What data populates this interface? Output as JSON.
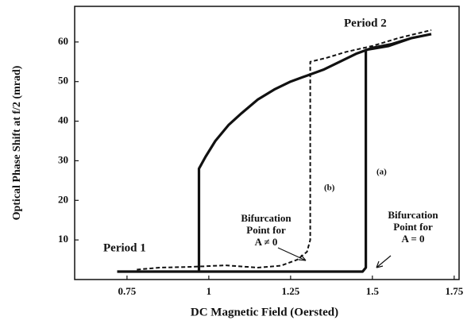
{
  "chart_data": {
    "type": "line",
    "x_label": "DC Magnetic Field (Oersted)",
    "y_label": "Optical Phase Shift at f/2 (mrad)",
    "xlim": [
      0.59,
      1.765
    ],
    "ylim": [
      0,
      69
    ],
    "xticks": [
      0.75,
      1,
      1.25,
      1.5,
      1.75
    ],
    "yticks": [
      10,
      20,
      30,
      40,
      50,
      60
    ],
    "grid": false,
    "series": [
      {
        "name": "(a)",
        "color": "#111111",
        "dash": false,
        "x": [
          0.72,
          0.9,
          1.1,
          1.3,
          1.47,
          1.48,
          1.48,
          1.55,
          1.62,
          1.68,
          1.68,
          0.97,
          0.97,
          0.99,
          1.02,
          1.06,
          1.1,
          1.15,
          1.2,
          1.25,
          1.3,
          1.35,
          1.4,
          1.45,
          1.5,
          1.56,
          1.62,
          1.68
        ],
        "values": [
          2,
          2,
          2,
          2,
          2,
          3,
          58,
          59,
          61,
          62,
          null,
          2,
          28,
          31,
          35,
          39,
          42,
          45.5,
          48,
          50,
          51.5,
          53,
          55,
          57,
          58.5,
          59.5,
          61,
          62
        ]
      },
      {
        "name": "(b)",
        "color": "#111111",
        "dash": true,
        "x": [
          0.78,
          0.85,
          0.95,
          1.05,
          1.15,
          1.22,
          1.27,
          1.3,
          1.31,
          1.31,
          1.36,
          1.42,
          1.5,
          1.58,
          1.68
        ],
        "values": [
          2.5,
          3,
          3.2,
          3.6,
          3,
          3.5,
          5,
          7,
          10,
          55,
          56,
          57.5,
          59,
          61,
          63
        ]
      }
    ],
    "annotations": {
      "period_2": "Period 2",
      "period_1": "Period 1",
      "bif_b": [
        "Bifurcation",
        "Point for",
        "A ≠ 0"
      ],
      "bif_a": [
        "Bifurcation",
        "Point for",
        "A = 0"
      ]
    }
  }
}
